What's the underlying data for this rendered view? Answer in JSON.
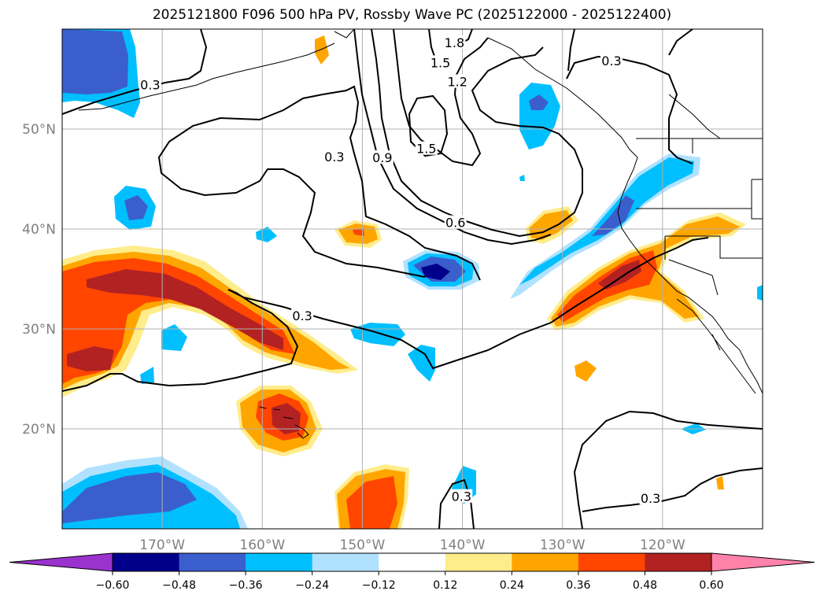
{
  "title": "2025121800 F096 500 hPa PV, Rossby Wave PC (2025122000 - 2025122400)",
  "map": {
    "lon_range": [
      -180,
      -110
    ],
    "lat_range": [
      10,
      60
    ],
    "lon_ticks": [
      {
        "lon": -170,
        "label": "170°W"
      },
      {
        "lon": -160,
        "label": "160°W"
      },
      {
        "lon": -150,
        "label": "150°W"
      },
      {
        "lon": -140,
        "label": "140°W"
      },
      {
        "lon": -130,
        "label": "130°W"
      },
      {
        "lon": -120,
        "label": "120°W"
      }
    ],
    "lat_ticks": [
      {
        "lat": 20,
        "label": "20°N"
      },
      {
        "lat": 30,
        "label": "30°N"
      },
      {
        "lat": 40,
        "label": "40°N"
      },
      {
        "lat": 50,
        "label": "50°N"
      }
    ],
    "grid": true
  },
  "contour_labels": [
    {
      "text": "0.3",
      "lon": -171.2,
      "lat": 54.3
    },
    {
      "text": "1.8",
      "lon": -140.8,
      "lat": 58.5
    },
    {
      "text": "1.5",
      "lon": -142.2,
      "lat": 56.5
    },
    {
      "text": "1.2",
      "lon": -140.5,
      "lat": 54.6
    },
    {
      "text": "0.3",
      "lon": -125.1,
      "lat": 56.7
    },
    {
      "text": "0.3",
      "lon": -152.8,
      "lat": 47.1
    },
    {
      "text": "0.9",
      "lon": -148.0,
      "lat": 47.0
    },
    {
      "text": "1.5",
      "lon": -143.6,
      "lat": 47.9
    },
    {
      "text": "0.6",
      "lon": -140.7,
      "lat": 40.5
    },
    {
      "text": "0.3",
      "lon": -156.0,
      "lat": 31.2
    },
    {
      "text": "0.3",
      "lon": -140.1,
      "lat": 13.1
    },
    {
      "text": "0.3",
      "lon": -121.2,
      "lat": 12.9
    }
  ],
  "colorbar": {
    "levels": [
      -0.6,
      -0.48,
      -0.36,
      -0.24,
      -0.12,
      0.12,
      0.24,
      0.36,
      0.48,
      0.6
    ],
    "labels": [
      "−0.60",
      "−0.48",
      "−0.36",
      "−0.24",
      "−0.12",
      "0.12",
      "0.24",
      "0.36",
      "0.48",
      "0.60"
    ],
    "colors": [
      "#9a32cd",
      "#00008b",
      "#3a5fcd",
      "#00bfff",
      "#b0e2ff",
      "#ffffff",
      "#ffec8b",
      "#ffa500",
      "#ff4500",
      "#b22222",
      "#ff82ab"
    ]
  }
}
